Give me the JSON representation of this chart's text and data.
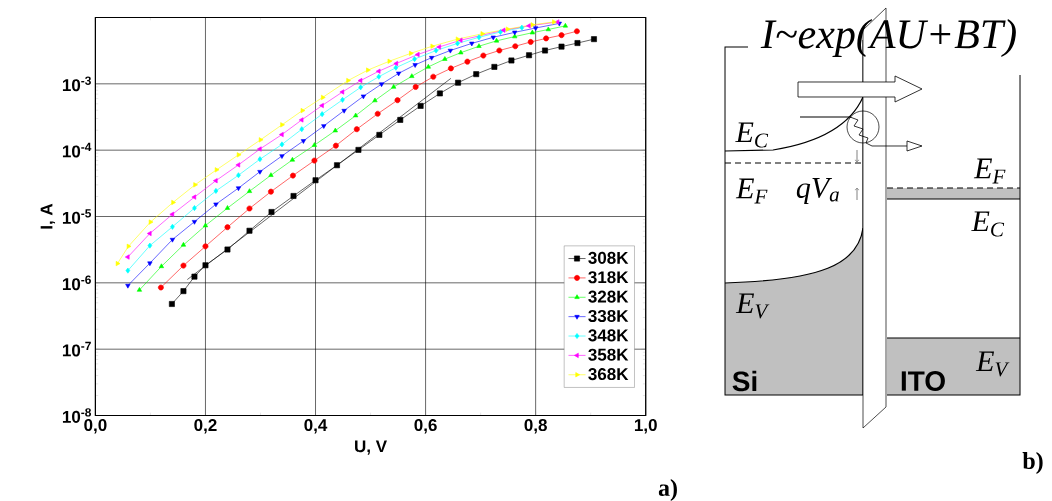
{
  "chart_data": [
    {
      "type": "line",
      "xlabel": "U, V",
      "ylabel": "I, A",
      "log": "y",
      "grid": true,
      "legend": "bottom right",
      "line_style": "solid",
      "xlim": [
        0,
        1
      ],
      "ylim": [
        1e-08,
        0.01
      ],
      "xticks": [
        {
          "value": 0,
          "label": "0,0"
        },
        {
          "value": 0.2,
          "label": "0,2"
        },
        {
          "value": 0.4,
          "label": "0,4"
        },
        {
          "value": 0.6,
          "label": "0,6"
        },
        {
          "value": 0.8,
          "label": "0,8"
        },
        {
          "value": 1,
          "label": "1,0"
        }
      ],
      "yticks": [
        {
          "value": 1e-08,
          "label": "10$^{-8}$"
        },
        {
          "value": 1e-07,
          "label": "10$^{-7}$"
        },
        {
          "value": 1e-06,
          "label": "10$^{-6}$"
        },
        {
          "value": 1e-05,
          "label": "10$^{-5}$"
        },
        {
          "value": 0.0001,
          "label": "10$^{-4}$"
        },
        {
          "value": 0.001,
          "label": "10$^{-3}$"
        }
      ],
      "annotations": [
        "a)"
      ],
      "series": [
        {
          "name": "308K",
          "color": "#000000",
          "marker": "square",
          "x": [
            0.139,
            0.16,
            0.18,
            0.2,
            0.24,
            0.28,
            0.32,
            0.36,
            0.4,
            0.439,
            0.478,
            0.516,
            0.554,
            0.591,
            0.626,
            0.659,
            0.692,
            0.725,
            0.756,
            0.788,
            0.817,
            0.847,
            0.876,
            0.906
          ],
          "values": [
            4.8e-07,
            7.5e-07,
            1.24e-06,
            1.84e-06,
            3.18e-06,
            6.1e-06,
            1.17e-05,
            2.04e-05,
            3.52e-05,
            5.93e-05,
            0.000101,
            0.00017,
            0.000286,
            0.000465,
            0.000717,
            0.00104,
            0.0014,
            0.0018,
            0.00225,
            0.0027,
            0.00318,
            0.00364,
            0.00412,
            0.00472
          ]
        },
        {
          "name": "318K",
          "color": "#ff0000",
          "marker": "circle",
          "x": [
            0.119,
            0.16,
            0.2,
            0.24,
            0.28,
            0.319,
            0.359,
            0.398,
            0.437,
            0.475,
            0.513,
            0.549,
            0.582,
            0.614,
            0.646,
            0.676,
            0.705,
            0.734,
            0.763,
            0.791,
            0.819,
            0.847,
            0.875
          ],
          "values": [
            8.5e-07,
            1.82e-06,
            3.55e-06,
            6.9e-06,
            1.32e-05,
            2.37e-05,
            4.14e-05,
            6.97e-05,
            0.000117,
            0.000207,
            0.000354,
            0.000567,
            0.000897,
            0.00128,
            0.00171,
            0.00216,
            0.00267,
            0.00318,
            0.00369,
            0.00428,
            0.00484,
            0.00542,
            0.00621
          ]
        },
        {
          "name": "328K",
          "color": "#00ff00",
          "marker": "triangle",
          "x": [
            0.08,
            0.12,
            0.16,
            0.2,
            0.24,
            0.28,
            0.319,
            0.358,
            0.398,
            0.436,
            0.473,
            0.508,
            0.542,
            0.575,
            0.605,
            0.635,
            0.664,
            0.697,
            0.729,
            0.762,
            0.794,
            0.823,
            0.854
          ],
          "values": [
            7.8e-07,
            1.77e-06,
            3.73e-06,
            7.3e-06,
            1.34e-05,
            2.4e-05,
            4.19e-05,
            7.14e-05,
            0.000119,
            0.000197,
            0.000332,
            0.00056,
            0.000897,
            0.0013,
            0.0018,
            0.00236,
            0.00295,
            0.00369,
            0.00445,
            0.00516,
            0.0059,
            0.0066,
            0.00748
          ]
        },
        {
          "name": "338K",
          "color": "#0000ff",
          "marker": "triangle-down",
          "x": [
            0.059,
            0.099,
            0.14,
            0.18,
            0.219,
            0.26,
            0.299,
            0.339,
            0.378,
            0.415,
            0.452,
            0.487,
            0.52,
            0.551,
            0.581,
            0.611,
            0.645,
            0.684,
            0.723,
            0.762,
            0.8,
            0.843
          ],
          "values": [
            9.1e-07,
            1.98e-06,
            4.49e-06,
            8.35e-06,
            1.53e-05,
            2.68e-05,
            4.74e-05,
            8.18e-05,
            0.000138,
            0.000232,
            0.000395,
            0.00065,
            0.000991,
            0.00144,
            0.00193,
            0.00248,
            0.00318,
            0.00407,
            0.00503,
            0.00598,
            0.00694,
            0.00815
          ]
        },
        {
          "name": "348K",
          "color": "#00ffff",
          "marker": "diamond",
          "x": [
            0.059,
            0.099,
            0.14,
            0.18,
            0.219,
            0.26,
            0.299,
            0.339,
            0.375,
            0.412,
            0.449,
            0.482,
            0.515,
            0.546,
            0.58,
            0.619,
            0.658,
            0.697,
            0.736,
            0.775
          ],
          "values": [
            1.53e-06,
            3.64e-06,
            7e-06,
            1.34e-05,
            2.43e-05,
            4.19e-05,
            7.31e-05,
            0.000122,
            0.000207,
            0.000349,
            0.000574,
            0.000885,
            0.00128,
            0.00175,
            0.00236,
            0.00318,
            0.00407,
            0.00503,
            0.00605,
            0.00703
          ]
        },
        {
          "name": "358K",
          "color": "#ff00ff",
          "marker": "triangle-left",
          "x": [
            0.059,
            0.099,
            0.14,
            0.18,
            0.219,
            0.26,
            0.299,
            0.339,
            0.375,
            0.412,
            0.449,
            0.482,
            0.515,
            0.547,
            0.586,
            0.625,
            0.664,
            0.703,
            0.742,
            0.788,
            0.84
          ],
          "values": [
            2.45e-06,
            5.55e-06,
            1.08e-05,
            1.96e-05,
            3.47e-05,
            6e-05,
            0.000104,
            0.000172,
            0.000286,
            0.000471,
            0.000754,
            0.00112,
            0.00155,
            0.00203,
            0.00277,
            0.0036,
            0.00455,
            null,
            0.00644,
            0.00748,
            0.00857
          ]
        },
        {
          "name": "368K",
          "color": "#ffff00",
          "marker": "triangle-right",
          "x": [
            0.04,
            0.06,
            0.1,
            0.141,
            0.181,
            0.22,
            0.26,
            0.3,
            0.339,
            0.376,
            0.413,
            0.459,
            0.495,
            0.534,
            0.573,
            0.612,
            0.658,
            0.703,
            0.749,
            0.794,
            0.833
          ],
          "values": [
            1.95e-06,
            3.55e-06,
            8.24e-06,
            1.63e-05,
            3e-05,
            5.05e-05,
            8.5e-05,
            0.000143,
            0.000241,
            0.000395,
            0.000625,
            0.00112,
            0.00161,
            0.00219,
            0.00288,
            0.00369,
            0.00472,
            0.00569,
            0.00668,
            0.00776,
            0.00857
          ]
        },
        {
          "type": "line",
          "color": "#000000",
          "marker": "none",
          "x": [
            0.167,
            0.646
          ],
          "values": [
            1.12e-06,
            0.00121
          ]
        }
      ]
    },
    {
      "type": "other",
      "annotations": [
        "I~exp(AU+BT)",
        "E$_{C}$",
        "E$_{F}$",
        "qV$_{a}$",
        "E$_{V}$",
        "Si",
        "ITO",
        "E$_{F}$",
        "E$_{C}$",
        "E$_{V}$",
        "b)"
      ]
    }
  ]
}
